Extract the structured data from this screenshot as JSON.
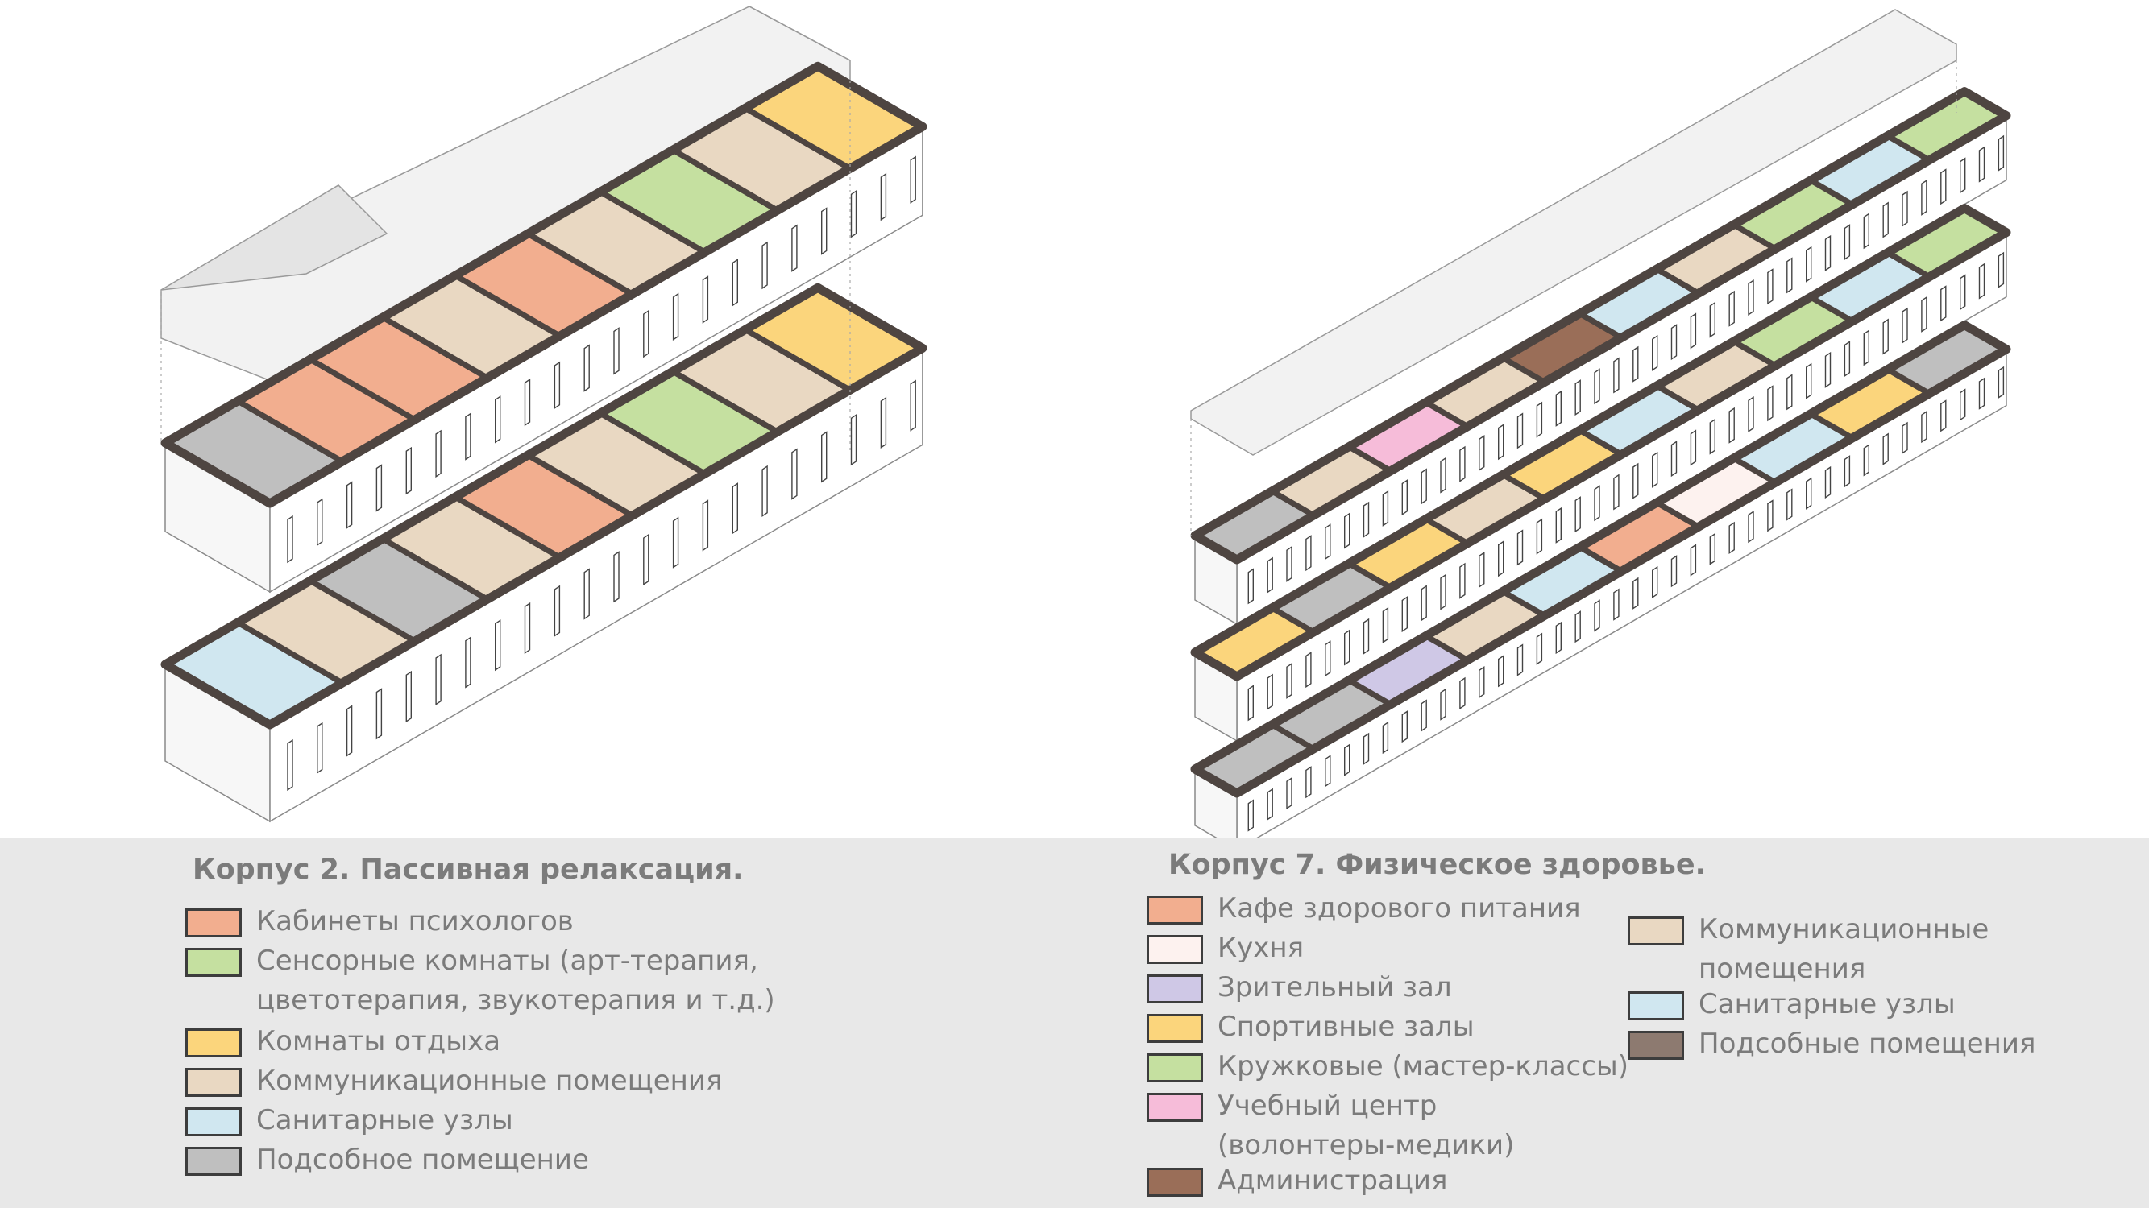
{
  "colors": {
    "psychologists": "#f2ae8f",
    "sensory": "#c5e0a0",
    "rest": "#fbd57c",
    "communication": "#e9d8c2",
    "sanitary": "#d0e7f0",
    "utility": "#bfbfbf",
    "cafe": "#f2ae8f",
    "kitchen": "#fdf2ef",
    "auditorium": "#cfc8e6",
    "sports": "#fbd57c",
    "clubs": "#c5e0a0",
    "training": "#f6bcd9",
    "administration": "#9a6e58",
    "auxiliary": "#8d7a70",
    "walls": "#4e4541",
    "roof": "#f2f2f2"
  },
  "legend_left": {
    "title": "Корпус 2. Пассивная релаксация.",
    "items": [
      {
        "label": "Кабинеты психологов",
        "color": "#f2ae8f"
      },
      {
        "label": "Сенсорные комнаты (арт-терапия,\nцветотерапия, звукотерапия и т.д.)",
        "color": "#c5e0a0"
      },
      {
        "label": "Комнаты отдыха",
        "color": "#fbd57c"
      },
      {
        "label": "Коммуникационные помещения",
        "color": "#e9d8c2"
      },
      {
        "label": "Санитарные узлы",
        "color": "#d0e7f0"
      },
      {
        "label": "Подсобное помещение",
        "color": "#bfbfbf"
      }
    ]
  },
  "legend_right": {
    "title": "Корпус 7. Физическое здоровье.",
    "items_col1": [
      {
        "label": "Кафе здорового питания",
        "color": "#f2ae8f"
      },
      {
        "label": "Кухня",
        "color": "#fdf2ef"
      },
      {
        "label": "Зрительный зал",
        "color": "#cfc8e6"
      },
      {
        "label": "Спортивные залы",
        "color": "#fbd57c"
      },
      {
        "label": "Кружковые (мастер-классы)",
        "color": "#c5e0a0"
      },
      {
        "label": "Учебный центр\n(волонтеры-медики)",
        "color": "#f6bcd9"
      },
      {
        "label": "Администрация",
        "color": "#9a6e58"
      }
    ],
    "items_col2": [
      {
        "label": "Коммуникационные\nпомещения",
        "color": "#e9d8c2"
      },
      {
        "label": "Санитарные узлы",
        "color": "#d0e7f0"
      },
      {
        "label": "Подсобные помещения",
        "color": "#8d7a70"
      }
    ]
  },
  "building_left": {
    "upper_floor_rooms": [
      "utility",
      "psychologists",
      "psychologists",
      "communication",
      "psychologists",
      "communication",
      "sensory",
      "communication",
      "rest"
    ],
    "lower_floor_rooms": [
      "sanitary",
      "communication",
      "utility",
      "communication",
      "psychologists",
      "communication",
      "sensory",
      "communication",
      "rest"
    ]
  },
  "building_right": {
    "floor3_rooms": [
      "utility",
      "communication",
      "training",
      "communication",
      "administration",
      "sanitary",
      "communication",
      "clubs",
      "sanitary",
      "clubs"
    ],
    "floor2_rooms": [
      "sports",
      "utility",
      "sports",
      "communication",
      "sports",
      "sanitary",
      "communication",
      "clubs",
      "sanitary",
      "clubs"
    ],
    "floor1_rooms": [
      "utility",
      "utility",
      "auditorium",
      "communication",
      "sanitary",
      "cafe",
      "kitchen",
      "sanitary",
      "sports",
      "utility"
    ]
  }
}
